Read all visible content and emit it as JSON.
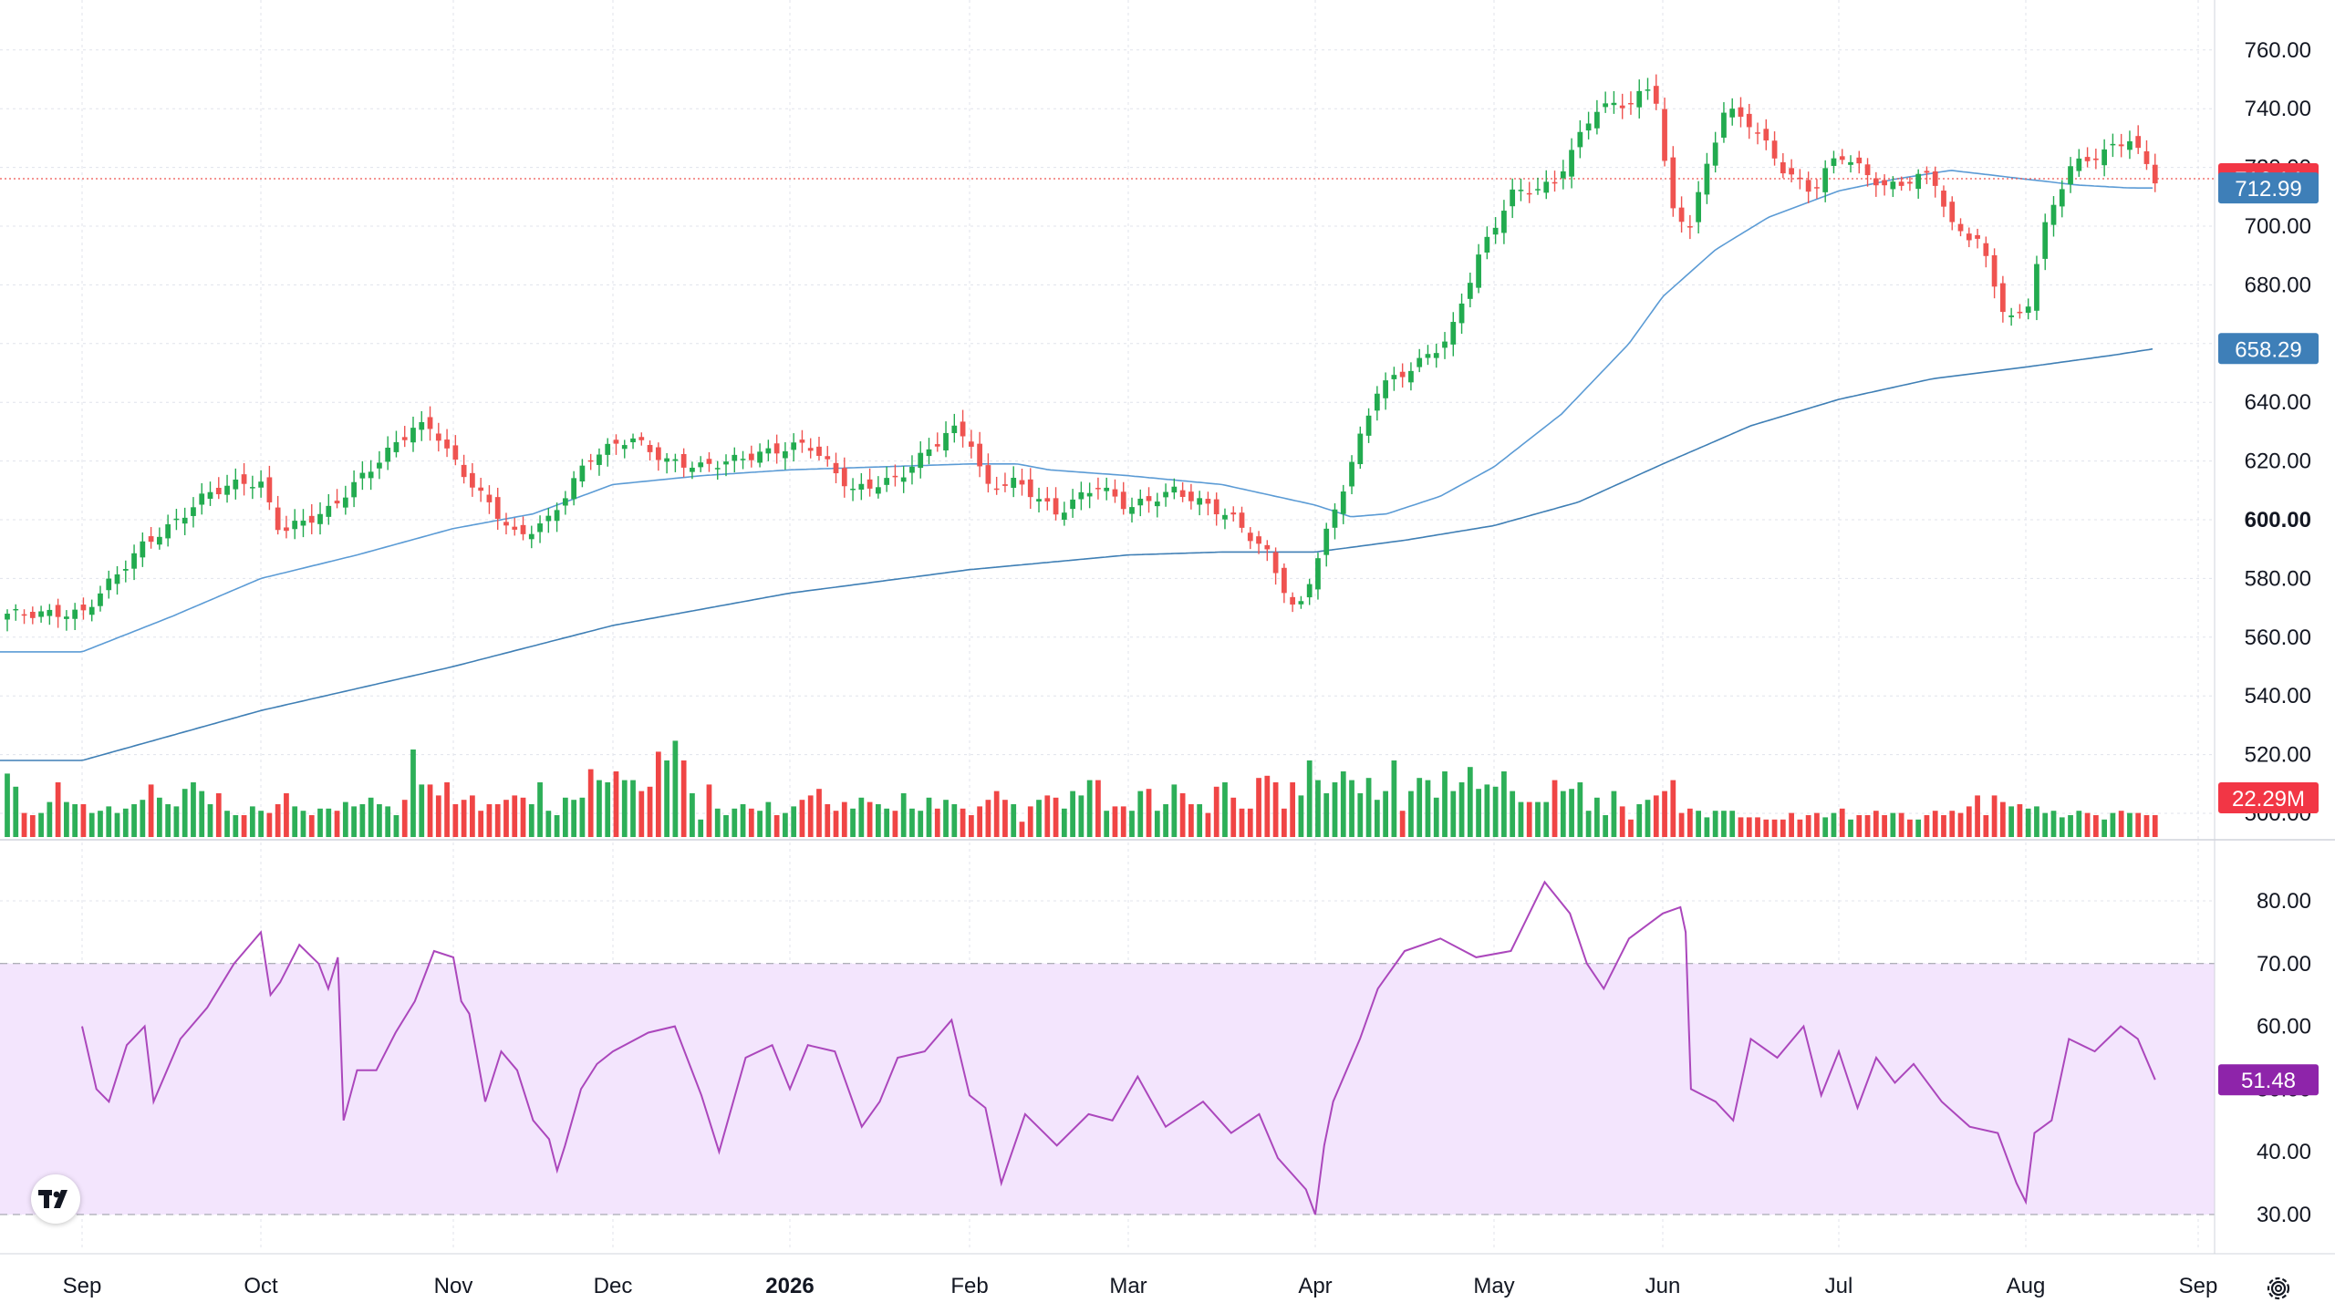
{
  "chart_data": [
    {
      "type": "candlestick",
      "title": "",
      "xlabel": "",
      "ylabel": "",
      "ylim": [
        495,
        770
      ],
      "y_ticks": [
        "760.00",
        "740.00",
        "720.00",
        "700.00",
        "680.00",
        "660.00",
        "640.00",
        "620.00",
        "600.00",
        "580.00",
        "560.00",
        "540.00",
        "520.00",
        "500.00"
      ],
      "x_ticks": [
        {
          "label": "Sep",
          "month": 0
        },
        {
          "label": "Oct",
          "month": 1
        },
        {
          "label": "Nov",
          "month": 2
        },
        {
          "label": "Dec",
          "month": 3
        },
        {
          "label": "2026",
          "month": 4,
          "bold": true
        },
        {
          "label": "Feb",
          "month": 5
        },
        {
          "label": "Mar",
          "month": 6
        },
        {
          "label": "Apr",
          "month": 7
        },
        {
          "label": "May",
          "month": 8
        },
        {
          "label": "Jun",
          "month": 9
        },
        {
          "label": "Jul",
          "month": 10
        },
        {
          "label": "Aug",
          "month": 11
        },
        {
          "label": "Sep",
          "month": 12
        }
      ],
      "close_anchors": [
        [
          0,
          568
        ],
        [
          0.1,
          575
        ],
        [
          0.35,
          592
        ],
        [
          0.5,
          598
        ],
        [
          0.7,
          609
        ],
        [
          0.9,
          613
        ],
        [
          1.0,
          612
        ],
        [
          1.1,
          596
        ],
        [
          1.35,
          603
        ],
        [
          1.5,
          613
        ],
        [
          1.8,
          632
        ],
        [
          1.9,
          631
        ],
        [
          2.0,
          620
        ],
        [
          2.15,
          610
        ],
        [
          2.4,
          594
        ],
        [
          2.6,
          600
        ],
        [
          2.85,
          621
        ],
        [
          3.1,
          628
        ],
        [
          3.3,
          620
        ],
        [
          3.5,
          618
        ],
        [
          3.8,
          622
        ],
        [
          4.1,
          626
        ],
        [
          4.35,
          610
        ],
        [
          4.6,
          614
        ],
        [
          4.9,
          631
        ],
        [
          5.0,
          628
        ],
        [
          5.1,
          611
        ],
        [
          5.3,
          613
        ],
        [
          5.55,
          602
        ],
        [
          5.8,
          612
        ],
        [
          6.0,
          604
        ],
        [
          6.25,
          610
        ],
        [
          6.55,
          601
        ],
        [
          6.75,
          588
        ],
        [
          6.9,
          567
        ],
        [
          7.0,
          585
        ],
        [
          7.15,
          610
        ],
        [
          7.35,
          645
        ],
        [
          7.55,
          652
        ],
        [
          7.75,
          662
        ],
        [
          7.9,
          688
        ],
        [
          8.1,
          711
        ],
        [
          8.35,
          714
        ],
        [
          8.6,
          740
        ],
        [
          8.8,
          742
        ],
        [
          8.95,
          748
        ],
        [
          9.05,
          705
        ],
        [
          9.15,
          700
        ],
        [
          9.35,
          740
        ],
        [
          9.5,
          735
        ],
        [
          9.7,
          718
        ],
        [
          9.85,
          712
        ],
        [
          10.0,
          725
        ],
        [
          10.25,
          713
        ],
        [
          10.5,
          718
        ],
        [
          10.6,
          700
        ],
        [
          10.75,
          695
        ],
        [
          10.9,
          668
        ],
        [
          11.0,
          670
        ],
        [
          11.1,
          698
        ],
        [
          11.25,
          720
        ],
        [
          11.45,
          725
        ],
        [
          11.6,
          730
        ],
        [
          11.75,
          716.14
        ]
      ],
      "volume_scale_max": 80,
      "volume_values": [
        29,
        23,
        11,
        10,
        11,
        16,
        25,
        16,
        15,
        15,
        11,
        12,
        14,
        11,
        13,
        15,
        17,
        24,
        18,
        15,
        14,
        22,
        25,
        21,
        15,
        20,
        12,
        10,
        10,
        14,
        12,
        11,
        15,
        20,
        14,
        12,
        10,
        13,
        13,
        12,
        16,
        14,
        15,
        18,
        15,
        14,
        10,
        17,
        40,
        24,
        24,
        19,
        25,
        15,
        17,
        19,
        12,
        15,
        15,
        17,
        19,
        18,
        15,
        25,
        12,
        10,
        18,
        17,
        18,
        31,
        26,
        25,
        30,
        26,
        26,
        21,
        23,
        39,
        35,
        44,
        35,
        20,
        8,
        24,
        13,
        10,
        13,
        15,
        13,
        12,
        16,
        10,
        11,
        14,
        17,
        19,
        22,
        15,
        12,
        16,
        13,
        18,
        16,
        15,
        13,
        12,
        20,
        13,
        12,
        18,
        13,
        17,
        15,
        13,
        10,
        14,
        17,
        21,
        17,
        15,
        7,
        14,
        17,
        19,
        18,
        13,
        21,
        19,
        26,
        26,
        12,
        14,
        14,
        12,
        21,
        22,
        12,
        15,
        24,
        20,
        15,
        15,
        11,
        23,
        25,
        18,
        13,
        13,
        27,
        28,
        25,
        13,
        25,
        19,
        35,
        26,
        20,
        25,
        30,
        26,
        20,
        27,
        17,
        21,
        35,
        12,
        21,
        27,
        26,
        18,
        30,
        21,
        25,
        32,
        22,
        24,
        23,
        30,
        21,
        16,
        16,
        16,
        16,
        26,
        21,
        22,
        25,
        12,
        18,
        10,
        21,
        14,
        8,
        15,
        17,
        19,
        21,
        26,
        11,
        13,
        12,
        9,
        12,
        12,
        12,
        9,
        9,
        9,
        8,
        8,
        8,
        11,
        8,
        10,
        11,
        9,
        11,
        13,
        8,
        10,
        10,
        12,
        10,
        11,
        11,
        8,
        8,
        10,
        12,
        10,
        12,
        11,
        14,
        19,
        10,
        19,
        16,
        14,
        15,
        13,
        14,
        11,
        12,
        9,
        10,
        12,
        11,
        10,
        8,
        11,
        12,
        11,
        11,
        10,
        10,
        11,
        9,
        9,
        10,
        7
      ],
      "ma50_anchors": [
        [
          0,
          555
        ],
        [
          0.5,
          567
        ],
        [
          1.0,
          580
        ],
        [
          1.5,
          588
        ],
        [
          2.0,
          597
        ],
        [
          2.3,
          600
        ],
        [
          2.5,
          602
        ],
        [
          3.0,
          612
        ],
        [
          3.5,
          615
        ],
        [
          4.0,
          617
        ],
        [
          4.5,
          618
        ],
        [
          5.0,
          619
        ],
        [
          5.3,
          619
        ],
        [
          5.5,
          617
        ],
        [
          6.0,
          615
        ],
        [
          6.5,
          612
        ],
        [
          7.0,
          605
        ],
        [
          7.2,
          601
        ],
        [
          7.4,
          602
        ],
        [
          7.7,
          608
        ],
        [
          8.0,
          618
        ],
        [
          8.4,
          636
        ],
        [
          8.8,
          660
        ],
        [
          9.0,
          676
        ],
        [
          9.3,
          692
        ],
        [
          9.6,
          703
        ],
        [
          10.0,
          712
        ],
        [
          10.3,
          716
        ],
        [
          10.6,
          719
        ],
        [
          11.0,
          716
        ],
        [
          11.3,
          714
        ],
        [
          11.6,
          713
        ],
        [
          11.75,
          712.99
        ]
      ],
      "ma200_anchors": [
        [
          0,
          518
        ],
        [
          1.0,
          535
        ],
        [
          2.0,
          550
        ],
        [
          3.0,
          564
        ],
        [
          4.0,
          575
        ],
        [
          5.0,
          583
        ],
        [
          6.0,
          588
        ],
        [
          6.5,
          589
        ],
        [
          7.0,
          589
        ],
        [
          7.5,
          593
        ],
        [
          8.0,
          598
        ],
        [
          8.5,
          606
        ],
        [
          9.0,
          619
        ],
        [
          9.5,
          632
        ],
        [
          10.0,
          641
        ],
        [
          10.5,
          648
        ],
        [
          11.0,
          652
        ],
        [
          11.5,
          656
        ],
        [
          11.75,
          658.29
        ]
      ],
      "price_labels": {
        "last_price": "716.14",
        "ma_short": "712.99",
        "ma_long": "658.29",
        "volume": "22.29M"
      },
      "colors": {
        "up": "#26a69a",
        "up_volume": "#22ab4f",
        "down": "#ef5350",
        "down_volume": "#ef3b3b",
        "ma_short": "#5b9bd5",
        "ma_long": "#3f7fb5",
        "last_price_line": "#ef5350",
        "rsi_line": "#ab47bc",
        "rsi_band": "#f3e5fd"
      }
    },
    {
      "type": "line",
      "title": "",
      "xlabel": "",
      "ylabel": "",
      "ylim": [
        26,
        86
      ],
      "y_ticks": [
        "80.00",
        "70.00",
        "60.00",
        "50.00",
        "40.00",
        "30.00"
      ],
      "band": [
        30,
        70
      ],
      "current_label": "51.48",
      "rsi_anchors": [
        [
          0,
          60
        ],
        [
          0.08,
          50
        ],
        [
          0.15,
          48
        ],
        [
          0.25,
          57
        ],
        [
          0.35,
          60
        ],
        [
          0.4,
          48
        ],
        [
          0.55,
          58
        ],
        [
          0.7,
          63
        ],
        [
          0.85,
          70
        ],
        [
          1.0,
          75
        ],
        [
          1.05,
          65
        ],
        [
          1.1,
          67
        ],
        [
          1.2,
          73
        ],
        [
          1.3,
          70
        ],
        [
          1.35,
          66
        ],
        [
          1.4,
          71
        ],
        [
          1.43,
          45
        ],
        [
          1.5,
          53
        ],
        [
          1.6,
          53
        ],
        [
          1.7,
          59
        ],
        [
          1.8,
          64
        ],
        [
          1.9,
          72
        ],
        [
          2.0,
          71
        ],
        [
          2.05,
          64
        ],
        [
          2.1,
          62
        ],
        [
          2.15,
          55
        ],
        [
          2.2,
          48
        ],
        [
          2.3,
          56
        ],
        [
          2.4,
          53
        ],
        [
          2.5,
          45
        ],
        [
          2.6,
          42
        ],
        [
          2.65,
          37
        ],
        [
          2.7,
          41
        ],
        [
          2.8,
          50
        ],
        [
          2.9,
          54
        ],
        [
          3.0,
          56
        ],
        [
          3.2,
          59
        ],
        [
          3.35,
          60
        ],
        [
          3.5,
          49
        ],
        [
          3.6,
          40
        ],
        [
          3.75,
          55
        ],
        [
          3.9,
          57
        ],
        [
          4.0,
          50
        ],
        [
          4.1,
          57
        ],
        [
          4.25,
          56
        ],
        [
          4.4,
          44
        ],
        [
          4.5,
          48
        ],
        [
          4.6,
          55
        ],
        [
          4.75,
          56
        ],
        [
          4.9,
          61
        ],
        [
          5.0,
          49
        ],
        [
          5.1,
          47
        ],
        [
          5.2,
          35
        ],
        [
          5.35,
          46
        ],
        [
          5.55,
          41
        ],
        [
          5.75,
          46
        ],
        [
          5.9,
          45
        ],
        [
          6.05,
          52
        ],
        [
          6.2,
          44
        ],
        [
          6.4,
          48
        ],
        [
          6.55,
          43
        ],
        [
          6.7,
          46
        ],
        [
          6.8,
          39
        ],
        [
          6.95,
          34
        ],
        [
          7.0,
          30
        ],
        [
          7.05,
          41
        ],
        [
          7.1,
          48
        ],
        [
          7.25,
          58
        ],
        [
          7.35,
          66
        ],
        [
          7.5,
          72
        ],
        [
          7.7,
          74
        ],
        [
          7.9,
          71
        ],
        [
          8.1,
          72
        ],
        [
          8.3,
          83
        ],
        [
          8.45,
          78
        ],
        [
          8.55,
          70
        ],
        [
          8.65,
          66
        ],
        [
          8.8,
          74
        ],
        [
          9.0,
          78
        ],
        [
          9.1,
          79
        ],
        [
          9.13,
          75
        ],
        [
          9.16,
          50
        ],
        [
          9.3,
          48
        ],
        [
          9.4,
          45
        ],
        [
          9.5,
          58
        ],
        [
          9.65,
          55
        ],
        [
          9.8,
          60
        ],
        [
          9.9,
          49
        ],
        [
          10.0,
          56
        ],
        [
          10.1,
          47
        ],
        [
          10.2,
          55
        ],
        [
          10.3,
          51
        ],
        [
          10.4,
          54
        ],
        [
          10.55,
          48
        ],
        [
          10.7,
          44
        ],
        [
          10.85,
          43
        ],
        [
          10.95,
          35
        ],
        [
          11.0,
          32
        ],
        [
          11.05,
          43
        ],
        [
          11.15,
          45
        ],
        [
          11.25,
          58
        ],
        [
          11.4,
          56
        ],
        [
          11.55,
          60
        ],
        [
          11.65,
          58
        ],
        [
          11.75,
          51.48
        ]
      ]
    }
  ]
}
